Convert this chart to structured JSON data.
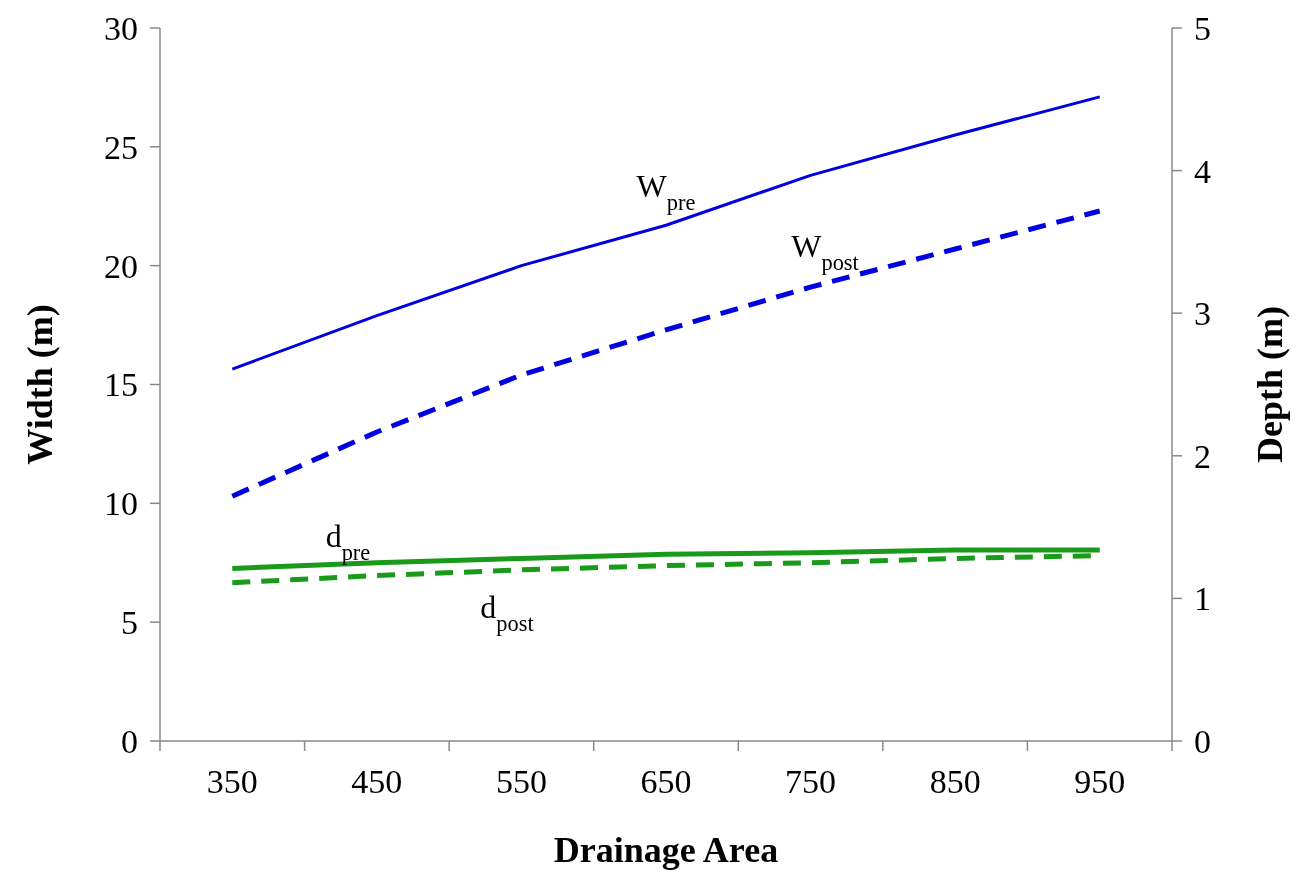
{
  "chart_data": {
    "type": "line",
    "xlabel": "Drainage Area",
    "ylabel": "Width (m)",
    "y2label": "Depth (m)",
    "categories": [
      "350",
      "450",
      "550",
      "650",
      "750",
      "850",
      "950"
    ],
    "ylim": [
      0,
      30
    ],
    "yticks": [
      0,
      5,
      10,
      15,
      20,
      25,
      30
    ],
    "y2lim": [
      0,
      5
    ],
    "y2ticks": [
      0,
      1,
      2,
      3,
      4,
      5
    ],
    "grid": false,
    "marker": "none",
    "series": [
      {
        "name": "W$_{pre}$",
        "color": "#0000e0",
        "line_style": "solid",
        "values": [
          15.65,
          17.9,
          20.0,
          21.7,
          23.8,
          25.5,
          27.1
        ]
      },
      {
        "name": "W$_{post}$",
        "color": "#0000e0",
        "line_style": "dashed",
        "values": [
          10.3,
          13.0,
          15.4,
          17.3,
          19.1,
          20.7,
          22.3
        ]
      },
      {
        "name": "d$_{pre}$",
        "color": "#1a9a1a",
        "line_style": "solid",
        "axis": "y2",
        "values": [
          1.21,
          1.25,
          1.28,
          1.31,
          1.32,
          1.34,
          1.34
        ]
      },
      {
        "name": "d$_{post}$",
        "color": "#1a9a1a",
        "line_style": "dashed",
        "axis": "y2",
        "values": [
          1.11,
          1.16,
          1.2,
          1.23,
          1.25,
          1.28,
          1.3
        ]
      }
    ]
  }
}
